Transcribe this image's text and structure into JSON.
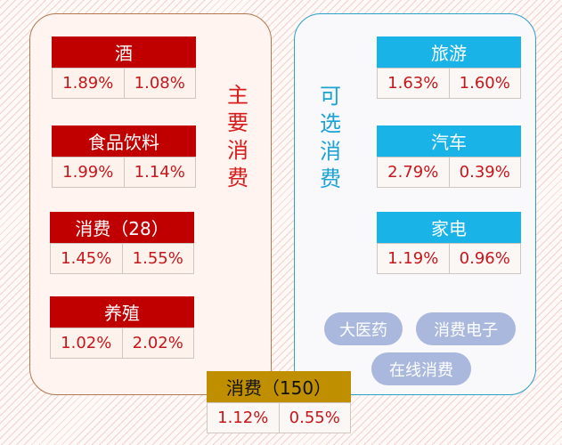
{
  "groups": {
    "main": {
      "title": [
        "主",
        "要",
        "消",
        "费"
      ],
      "cards": [
        {
          "name": "酒",
          "v1": "1.89%",
          "v2": "1.08%"
        },
        {
          "name": "食品饮料",
          "v1": "1.99%",
          "v2": "1.14%"
        },
        {
          "name": "消费（28）",
          "v1": "1.45%",
          "v2": "1.55%"
        },
        {
          "name": "养殖",
          "v1": "1.02%",
          "v2": "2.02%"
        }
      ]
    },
    "optional": {
      "title": [
        "可",
        "选",
        "消",
        "费"
      ],
      "cards": [
        {
          "name": "旅游",
          "v1": "1.63%",
          "v2": "1.60%"
        },
        {
          "name": "汽车",
          "v1": "2.79%",
          "v2": "0.39%"
        },
        {
          "name": "家电",
          "v1": "1.19%",
          "v2": "0.96%"
        }
      ],
      "tags": [
        "大医药",
        "消费电子",
        "在线消费"
      ]
    }
  },
  "overall": {
    "name": "消费（150）",
    "v1": "1.12%",
    "v2": "0.55%"
  },
  "colors": {
    "main_header": "#c00000",
    "optional_header": "#19b3e8",
    "overall_header": "#bf8f00",
    "value_text": "#c7161b",
    "tag_bg": "#aab8de"
  }
}
